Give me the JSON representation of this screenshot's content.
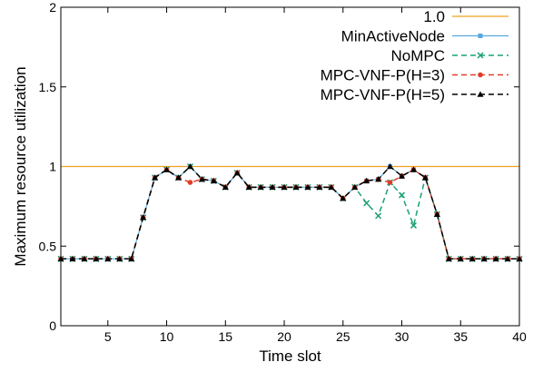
{
  "chart_data": {
    "type": "line",
    "title": "",
    "xlabel": "Time slot",
    "ylabel": "Maximum resource utilization",
    "xlim": [
      1,
      40
    ],
    "ylim": [
      0,
      2
    ],
    "xticks": [
      5,
      10,
      15,
      20,
      25,
      30,
      35,
      40
    ],
    "yticks": [
      0,
      0.5,
      1,
      1.5,
      2
    ],
    "xtick_labels": [
      "5",
      "10",
      "15",
      "20",
      "25",
      "30",
      "35",
      "40"
    ],
    "ytick_labels": [
      "0",
      "0.5",
      "1",
      "1.5",
      "2"
    ],
    "grid": false,
    "legend_position": "top-right",
    "x": [
      1,
      2,
      3,
      4,
      5,
      6,
      7,
      8,
      9,
      10,
      11,
      12,
      13,
      14,
      15,
      16,
      17,
      18,
      19,
      20,
      21,
      22,
      23,
      24,
      25,
      26,
      27,
      28,
      29,
      30,
      31,
      32,
      33,
      34,
      35,
      36,
      37,
      38,
      39,
      40
    ],
    "series": [
      {
        "name": "1.0",
        "color": "#f0a020",
        "style": "solid",
        "marker": "none",
        "x": [
          1,
          40
        ],
        "values": [
          1.0,
          1.0
        ]
      },
      {
        "name": "MinActiveNode",
        "color": "#56a8e0",
        "style": "solid",
        "marker": "square",
        "values": [
          0.42,
          0.42,
          0.42,
          0.42,
          0.42,
          0.42,
          0.42,
          0.68,
          0.93,
          0.98,
          0.93,
          1.0,
          0.92,
          0.91,
          0.87,
          0.96,
          0.87,
          0.87,
          0.87,
          0.87,
          0.87,
          0.87,
          0.87,
          0.87,
          0.8,
          0.87,
          0.91,
          0.92,
          1.0,
          0.94,
          0.98,
          0.93,
          0.7,
          0.42,
          0.42,
          0.42,
          0.42,
          0.42,
          0.42,
          0.42
        ]
      },
      {
        "name": "NoMPC",
        "color": "#1aa077",
        "style": "dashed",
        "marker": "x",
        "values": [
          0.42,
          0.42,
          0.42,
          0.42,
          0.42,
          0.42,
          0.42,
          0.68,
          0.93,
          0.98,
          0.93,
          1.0,
          0.92,
          0.91,
          0.87,
          0.96,
          0.87,
          0.87,
          0.87,
          0.87,
          0.87,
          0.87,
          0.87,
          0.87,
          0.8,
          0.87,
          0.77,
          0.69,
          0.9,
          0.82,
          0.63,
          0.93,
          0.7,
          0.42,
          0.42,
          0.42,
          0.42,
          0.42,
          0.42,
          0.42
        ]
      },
      {
        "name": "MPC-VNF-P(H=3)",
        "color": "#e03c28",
        "style": "dashed",
        "marker": "circle",
        "values": [
          0.42,
          0.42,
          0.42,
          0.42,
          0.42,
          0.42,
          0.42,
          0.68,
          0.93,
          0.98,
          0.93,
          0.9,
          0.92,
          0.91,
          0.87,
          0.96,
          0.87,
          0.87,
          0.87,
          0.87,
          0.87,
          0.87,
          0.87,
          0.87,
          0.8,
          0.87,
          0.91,
          0.92,
          0.9,
          0.94,
          0.98,
          0.93,
          0.7,
          0.42,
          0.42,
          0.42,
          0.42,
          0.42,
          0.42,
          0.42
        ]
      },
      {
        "name": "MPC-VNF-P(H=5)",
        "color": "#000000",
        "style": "dashed",
        "marker": "triangle",
        "values": [
          0.42,
          0.42,
          0.42,
          0.42,
          0.42,
          0.42,
          0.42,
          0.68,
          0.93,
          0.98,
          0.93,
          1.0,
          0.92,
          0.91,
          0.87,
          0.96,
          0.87,
          0.87,
          0.87,
          0.87,
          0.87,
          0.87,
          0.87,
          0.87,
          0.8,
          0.87,
          0.91,
          0.92,
          1.0,
          0.94,
          0.98,
          0.93,
          0.7,
          0.42,
          0.42,
          0.42,
          0.42,
          0.42,
          0.42,
          0.42
        ]
      }
    ]
  }
}
